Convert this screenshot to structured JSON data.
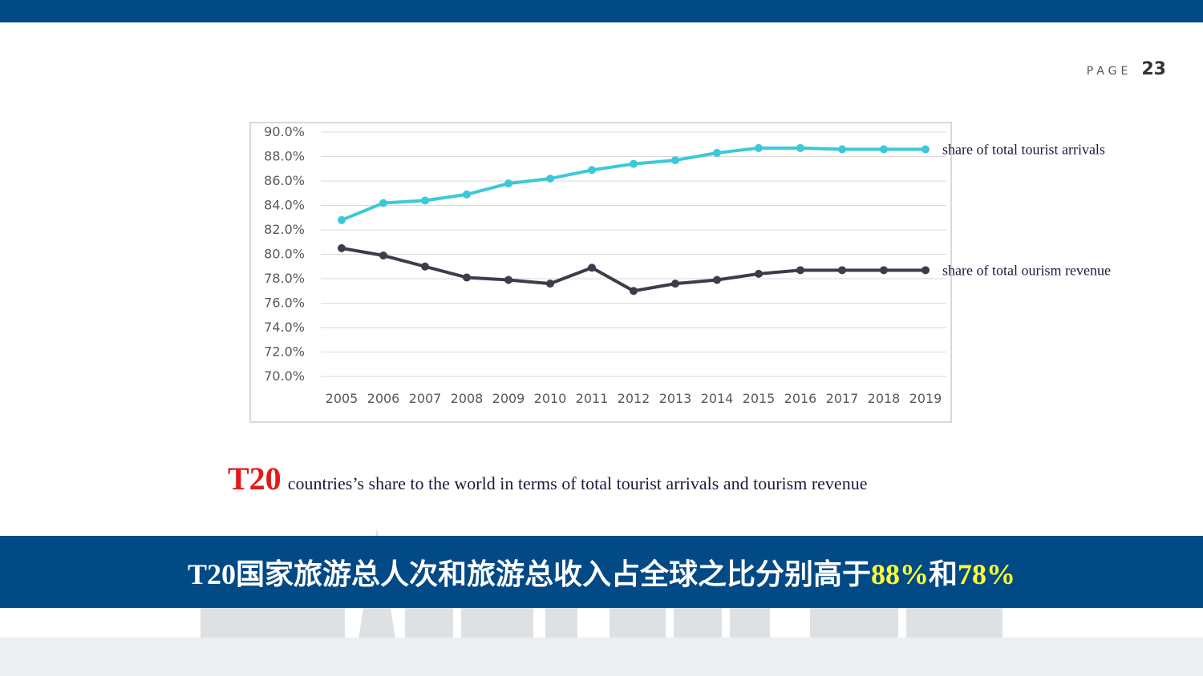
{
  "header": {
    "page_word": "PAGE",
    "page_number": "23",
    "bar_color": "#024a86"
  },
  "chart_data": {
    "type": "line",
    "title": "",
    "xlabel": "",
    "ylabel": "",
    "ylim": [
      0.7,
      0.9
    ],
    "y_ticks": [
      "90.0%",
      "88.0%",
      "86.0%",
      "84.0%",
      "82.0%",
      "80.0%",
      "78.0%",
      "76.0%",
      "74.0%",
      "72.0%",
      "70.0%"
    ],
    "categories": [
      "2005",
      "2006",
      "2007",
      "2008",
      "2009",
      "2010",
      "2011",
      "2012",
      "2013",
      "2014",
      "2015",
      "2016",
      "2017",
      "2018",
      "2019"
    ],
    "grid": true,
    "series": [
      {
        "name": "share of total tourist arrivals",
        "color": "#3cc8d8",
        "values": [
          0.828,
          0.842,
          0.844,
          0.849,
          0.858,
          0.862,
          0.869,
          0.874,
          0.877,
          0.883,
          0.887,
          0.887,
          0.886,
          0.886,
          0.886
        ]
      },
      {
        "name": "share of total ourism revenue",
        "color": "#3a3d4a",
        "values": [
          0.805,
          0.799,
          0.79,
          0.781,
          0.779,
          0.776,
          0.789,
          0.77,
          0.776,
          0.779,
          0.784,
          0.787,
          0.787,
          0.787,
          0.787
        ]
      }
    ]
  },
  "caption": {
    "prefix": "T20",
    "text": "countries’s share to the world in terms of  total tourist arrivals and tourism revenue"
  },
  "banner": {
    "text_main": "T20国家旅游总人次和旅游总收入占全球之比分别高于",
    "highlight_1": "88%",
    "connector": "和",
    "highlight_2": "78%",
    "highlight_color": "#ffff33"
  }
}
